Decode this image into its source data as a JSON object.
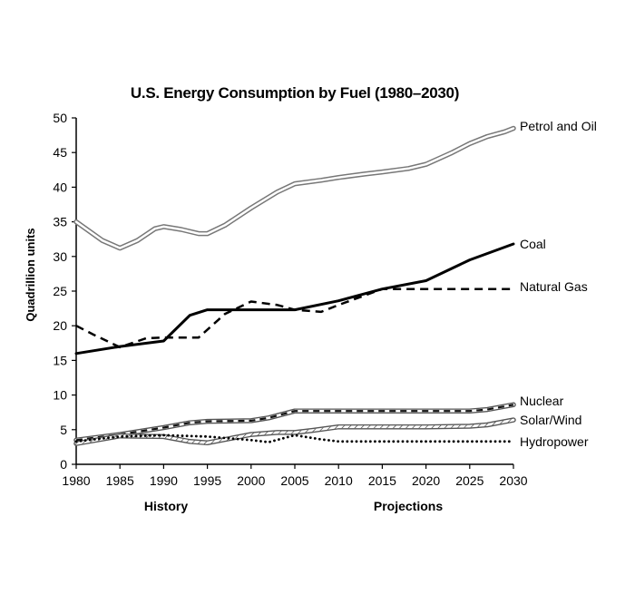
{
  "chart_data": {
    "type": "line",
    "title": "U.S. Energy Consumption by Fuel (1980–2030)",
    "xlabel": "",
    "ylabel": "Quadrillion units",
    "xlim": [
      1980,
      2030
    ],
    "ylim": [
      0,
      50
    ],
    "x_ticks": [
      "1980",
      "1985",
      "1990",
      "1995",
      "2000",
      "2005",
      "2010",
      "2015",
      "2020",
      "2025",
      "2030"
    ],
    "y_ticks": [
      "0",
      "5",
      "10",
      "15",
      "20",
      "25",
      "30",
      "35",
      "40",
      "45",
      "50"
    ],
    "grid": false,
    "legend": "labels at right end of each line",
    "annotations": [
      "History",
      "Projections"
    ],
    "series": [
      {
        "name": "Petrol and Oil",
        "style": "double-outline",
        "x": [
          1980,
          1983,
          1985,
          1987,
          1989,
          1990,
          1992,
          1994,
          1995,
          1997,
          2000,
          2003,
          2005,
          2008,
          2010,
          2013,
          2015,
          2018,
          2020,
          2023,
          2025,
          2027,
          2029,
          2030
        ],
        "y": [
          35,
          32.3,
          31.2,
          32.3,
          34,
          34.3,
          33.9,
          33.3,
          33.3,
          34.5,
          37,
          39.3,
          40.5,
          41,
          41.4,
          41.9,
          42.2,
          42.7,
          43.3,
          45,
          46.3,
          47.3,
          48,
          48.5
        ]
      },
      {
        "name": "Coal",
        "style": "solid",
        "x": [
          1980,
          1985,
          1990,
          1993,
          1995,
          2000,
          2005,
          2010,
          2015,
          2020,
          2025,
          2030
        ],
        "y": [
          16,
          17,
          17.8,
          21.5,
          22.3,
          22.3,
          22.3,
          23.6,
          25.3,
          26.5,
          29.5,
          31.8
        ]
      },
      {
        "name": "Natural Gas",
        "style": "dashed",
        "x": [
          1980,
          1982,
          1985,
          1988,
          1990,
          1994,
          1997,
          2000,
          2003,
          2005,
          2008,
          2010,
          2015,
          2020,
          2025,
          2030
        ],
        "y": [
          20,
          18.7,
          16.9,
          18.2,
          18.3,
          18.3,
          21.7,
          23.5,
          23,
          22.3,
          22,
          23,
          25.3,
          25.3,
          25.3,
          25.3
        ]
      },
      {
        "name": "Nuclear",
        "style": "double-outline-dashed-fill",
        "x": [
          1980,
          1985,
          1990,
          1993,
          1995,
          2000,
          2002,
          2005,
          2010,
          2015,
          2020,
          2025,
          2027,
          2030
        ],
        "y": [
          3.5,
          4.3,
          5.3,
          6,
          6.2,
          6.3,
          6.7,
          7.7,
          7.7,
          7.7,
          7.7,
          7.7,
          7.9,
          8.6
        ]
      },
      {
        "name": "Solar/Wind",
        "style": "double-outline-hatched",
        "x": [
          1980,
          1985,
          1990,
          1993,
          1995,
          2000,
          2003,
          2005,
          2007,
          2010,
          2015,
          2020,
          2025,
          2027,
          2030
        ],
        "y": [
          3,
          4.1,
          4,
          3.3,
          3.1,
          4.3,
          4.6,
          4.6,
          4.9,
          5.4,
          5.4,
          5.4,
          5.5,
          5.7,
          6.4
        ]
      },
      {
        "name": "Hydropower",
        "style": "dotted",
        "x": [
          1980,
          1985,
          1990,
          1995,
          2000,
          2002,
          2005,
          2008,
          2010,
          2012,
          2015,
          2020,
          2025,
          2030
        ],
        "y": [
          3.3,
          4,
          4.2,
          4,
          3.5,
          3.2,
          4.2,
          3.6,
          3.3,
          3.3,
          3.3,
          3.3,
          3.3,
          3.3
        ]
      }
    ]
  }
}
